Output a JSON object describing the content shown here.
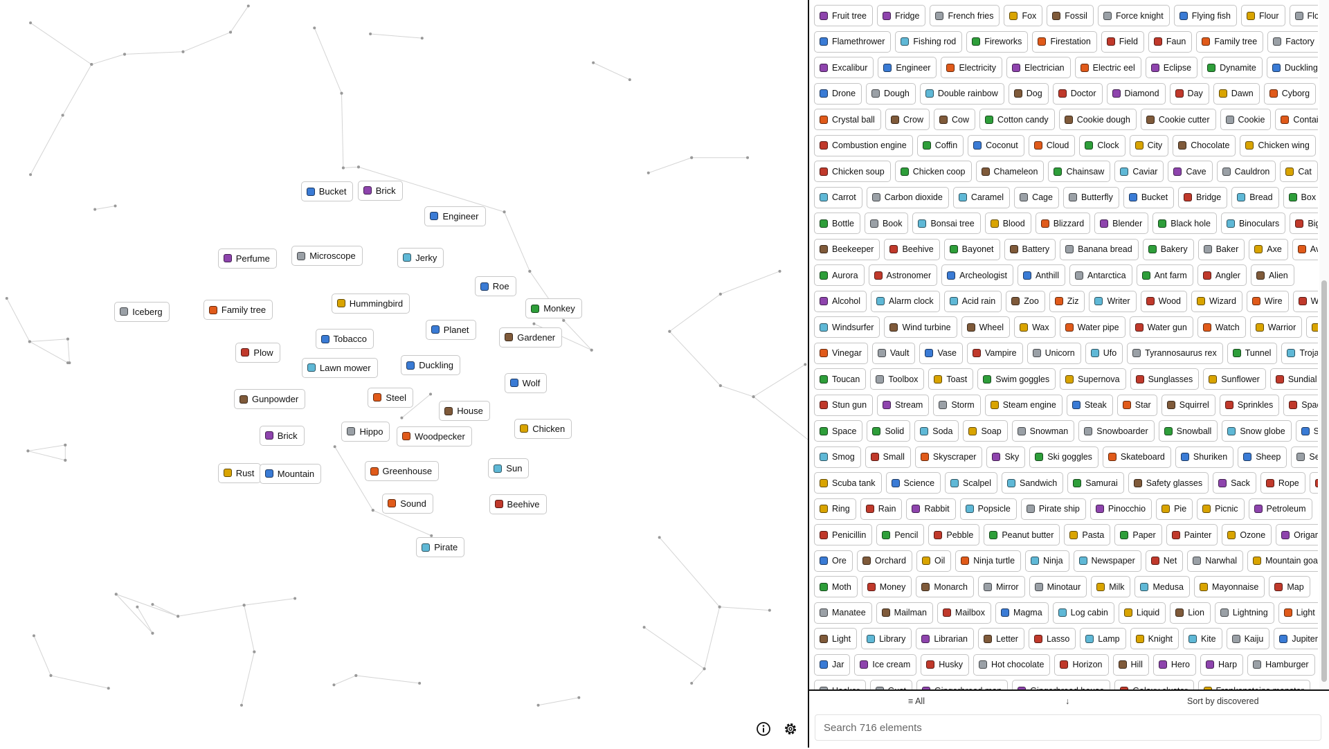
{
  "canvas": {
    "items": [
      "Bucket",
      "Brick",
      "Engineer",
      "Perfume",
      "Microscope",
      "Jerky",
      "Roe",
      "Hummingbird",
      "Monkey",
      "Iceberg",
      "Family tree",
      "Planet",
      "Tobacco",
      "Gardener",
      "Plow",
      "Lawn mower",
      "Duckling",
      "Wolf",
      "Steel",
      "Gunpowder",
      "House",
      "Chicken",
      "Hippo",
      "Woodpecker",
      "Brick",
      "Rust",
      "Mountain",
      "Greenhouse",
      "Sun",
      "Sound",
      "Beehive",
      "Pirate"
    ],
    "info_icon": "info-icon",
    "settings_icon": "gear-icon"
  },
  "sidebar": {
    "rows": [
      [
        "Fruit tree",
        "Fridge",
        "French fries",
        "Fox",
        "Fossil",
        "Force knight",
        "Flying fish",
        "Flour",
        "Flood"
      ],
      [
        "Flamethrower",
        "Fishing rod",
        "Fireworks",
        "Firestation",
        "Field",
        "Faun",
        "Family tree",
        "Factory"
      ],
      [
        "Excalibur",
        "Engineer",
        "Electricity",
        "Electrician",
        "Electric eel",
        "Eclipse",
        "Dynamite",
        "Duckling"
      ],
      [
        "Drone",
        "Dough",
        "Double rainbow",
        "Dog",
        "Doctor",
        "Diamond",
        "Day",
        "Dawn",
        "Cyborg"
      ],
      [
        "Crystal ball",
        "Crow",
        "Cow",
        "Cotton candy",
        "Cookie dough",
        "Cookie cutter",
        "Cookie",
        "Container"
      ],
      [
        "Combustion engine",
        "Coffin",
        "Coconut",
        "Cloud",
        "Clock",
        "City",
        "Chocolate",
        "Chicken wing"
      ],
      [
        "Chicken soup",
        "Chicken coop",
        "Chameleon",
        "Chainsaw",
        "Caviar",
        "Cave",
        "Cauldron",
        "Cat"
      ],
      [
        "Carrot",
        "Carbon dioxide",
        "Caramel",
        "Cage",
        "Butterfly",
        "Bucket",
        "Bridge",
        "Bread",
        "Box"
      ],
      [
        "Bottle",
        "Book",
        "Bonsai tree",
        "Blood",
        "Blizzard",
        "Blender",
        "Black hole",
        "Binoculars",
        "Big"
      ],
      [
        "Beekeeper",
        "Beehive",
        "Bayonet",
        "Battery",
        "Banana bread",
        "Bakery",
        "Baker",
        "Axe",
        "Aviary"
      ],
      [
        "Aurora",
        "Astronomer",
        "Archeologist",
        "Anthill",
        "Antarctica",
        "Ant farm",
        "Angler",
        "Alien"
      ],
      [
        "Alcohol",
        "Alarm clock",
        "Acid rain",
        "Zoo",
        "Ziz",
        "Writer",
        "Wood",
        "Wizard",
        "Wire",
        "Wine"
      ],
      [
        "Windsurfer",
        "Wind turbine",
        "Wheel",
        "Wax",
        "Water pipe",
        "Water gun",
        "Watch",
        "Warrior",
        "Wand"
      ],
      [
        "Vinegar",
        "Vault",
        "Vase",
        "Vampire",
        "Unicorn",
        "Ufo",
        "Tyrannosaurus rex",
        "Tunnel",
        "Trojan horse"
      ],
      [
        "Toucan",
        "Toolbox",
        "Toast",
        "Swim goggles",
        "Supernova",
        "Sunglasses",
        "Sunflower",
        "Sundial"
      ],
      [
        "Stun gun",
        "Stream",
        "Storm",
        "Steam engine",
        "Steak",
        "Star",
        "Squirrel",
        "Sprinkles",
        "Spaceship"
      ],
      [
        "Space",
        "Solid",
        "Soda",
        "Soap",
        "Snowman",
        "Snowboarder",
        "Snowball",
        "Snow globe",
        "Snake"
      ],
      [
        "Smog",
        "Small",
        "Skyscraper",
        "Sky",
        "Ski goggles",
        "Skateboard",
        "Shuriken",
        "Sheep",
        "Seal"
      ],
      [
        "Scuba tank",
        "Science",
        "Scalpel",
        "Sandwich",
        "Samurai",
        "Safety glasses",
        "Sack",
        "Rope",
        "Rivulet"
      ],
      [
        "Ring",
        "Rain",
        "Rabbit",
        "Popsicle",
        "Pirate ship",
        "Pinocchio",
        "Pie",
        "Picnic",
        "Petroleum"
      ],
      [
        "Penicillin",
        "Pencil",
        "Pebble",
        "Peanut butter",
        "Pasta",
        "Paper",
        "Painter",
        "Ozone",
        "Origami"
      ],
      [
        "Ore",
        "Orchard",
        "Oil",
        "Ninja turtle",
        "Ninja",
        "Newspaper",
        "Net",
        "Narwhal",
        "Mountain goat"
      ],
      [
        "Moth",
        "Money",
        "Monarch",
        "Mirror",
        "Minotaur",
        "Milk",
        "Medusa",
        "Mayonnaise",
        "Map"
      ],
      [
        "Manatee",
        "Mailman",
        "Mailbox",
        "Magma",
        "Log cabin",
        "Liquid",
        "Lion",
        "Lightning",
        "Light bulb"
      ],
      [
        "Light",
        "Library",
        "Librarian",
        "Letter",
        "Lasso",
        "Lamp",
        "Knight",
        "Kite",
        "Kaiju",
        "Jupiter"
      ],
      [
        "Jar",
        "Ice cream",
        "Husky",
        "Hot chocolate",
        "Horizon",
        "Hill",
        "Hero",
        "Harp",
        "Hamburger"
      ],
      [
        "Hacker",
        "Gust",
        "Gingerbread man",
        "Gingerbread house",
        "Galaxy cluster",
        "Frankensteins monster"
      ]
    ],
    "filter_label": "All",
    "sort_direction_icon": "arrow-down-icon",
    "sort_label": "Sort by discovered",
    "search_placeholder": "Search 716 elements"
  },
  "colors": {
    "border": "#111111",
    "item_border": "#c4c4c4",
    "icon_palette": [
      "#2e9e3a",
      "#d9a400",
      "#e05a1a",
      "#3a7bd5",
      "#c0392b",
      "#8e44ad",
      "#7f5a3a",
      "#5fb8d6",
      "#9aa0a6"
    ]
  }
}
